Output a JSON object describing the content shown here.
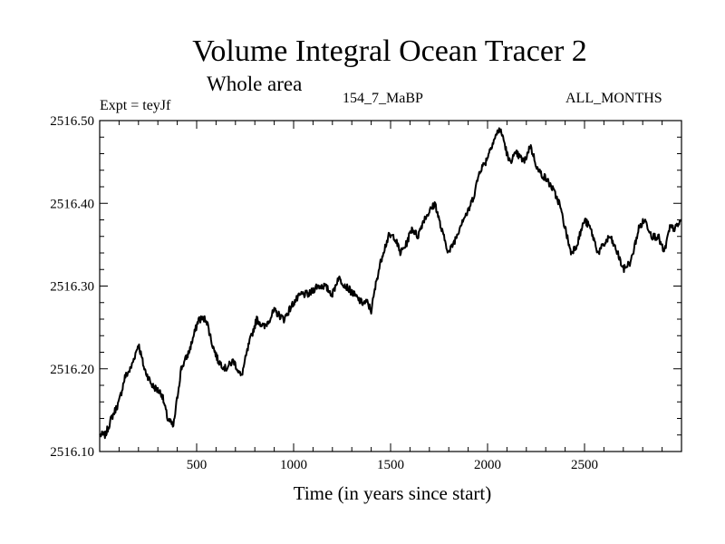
{
  "chart_data": {
    "type": "line",
    "title": "Volume Integral Ocean Tracer 2",
    "subtitle": "Whole area",
    "annotations": {
      "experiment": "Expt = teyJf",
      "run": "154_7_MaBP",
      "months": "ALL_MONTHS"
    },
    "xlabel": "Time (in years since start)",
    "ylabel": "",
    "xlim": [
      0,
      3000
    ],
    "ylim": [
      2516.1,
      2516.5
    ],
    "xticks": [
      500,
      1000,
      1500,
      2000,
      2500
    ],
    "xtick_labels": [
      "500",
      "1000",
      "1500",
      "2000",
      "2500"
    ],
    "yticks": [
      2516.1,
      2516.2,
      2516.3,
      2516.4,
      2516.5
    ],
    "ytick_labels": [
      "2516.10",
      "2516.20",
      "2516.30",
      "2516.40",
      "2516.50"
    ],
    "grid": false,
    "series": [
      {
        "name": "Volume Integral Ocean Tracer 2",
        "x": [
          0,
          30,
          60,
          100,
          130,
          160,
          200,
          230,
          270,
          320,
          350,
          380,
          420,
          460,
          510,
          550,
          580,
          610,
          650,
          690,
          730,
          770,
          810,
          850,
          900,
          950,
          1000,
          1040,
          1080,
          1120,
          1160,
          1200,
          1230,
          1270,
          1310,
          1350,
          1380,
          1400,
          1430,
          1460,
          1490,
          1520,
          1550,
          1580,
          1610,
          1640,
          1670,
          1700,
          1730,
          1760,
          1800,
          1840,
          1870,
          1900,
          1930,
          1960,
          1990,
          2020,
          2060,
          2080,
          2110,
          2150,
          2190,
          2220,
          2260,
          2300,
          2330,
          2370,
          2400,
          2430,
          2460,
          2500,
          2530,
          2570,
          2600,
          2630,
          2670,
          2700,
          2740,
          2780,
          2810,
          2850,
          2880,
          2910,
          2940,
          2970,
          3000
        ],
        "values": [
          2516.12,
          2516.12,
          2516.14,
          2516.16,
          2516.19,
          2516.2,
          2516.23,
          2516.2,
          2516.18,
          2516.17,
          2516.14,
          2516.13,
          2516.2,
          2516.22,
          2516.26,
          2516.26,
          2516.23,
          2516.21,
          2516.2,
          2516.21,
          2516.19,
          2516.23,
          2516.26,
          2516.25,
          2516.27,
          2516.26,
          2516.28,
          2516.29,
          2516.29,
          2516.3,
          2516.3,
          2516.29,
          2516.31,
          2516.3,
          2516.29,
          2516.28,
          2516.28,
          2516.27,
          2516.31,
          2516.34,
          2516.36,
          2516.36,
          2516.34,
          2516.35,
          2516.37,
          2516.36,
          2516.38,
          2516.39,
          2516.4,
          2516.37,
          2516.34,
          2516.36,
          2516.38,
          2516.39,
          2516.41,
          2516.44,
          2516.45,
          2516.47,
          2516.49,
          2516.48,
          2516.45,
          2516.46,
          2516.45,
          2516.47,
          2516.44,
          2516.43,
          2516.42,
          2516.4,
          2516.37,
          2516.34,
          2516.35,
          2516.38,
          2516.37,
          2516.34,
          2516.35,
          2516.36,
          2516.34,
          2516.32,
          2516.33,
          2516.37,
          2516.38,
          2516.36,
          2516.36,
          2516.34,
          2516.37,
          2516.37,
          2516.38
        ]
      }
    ]
  }
}
